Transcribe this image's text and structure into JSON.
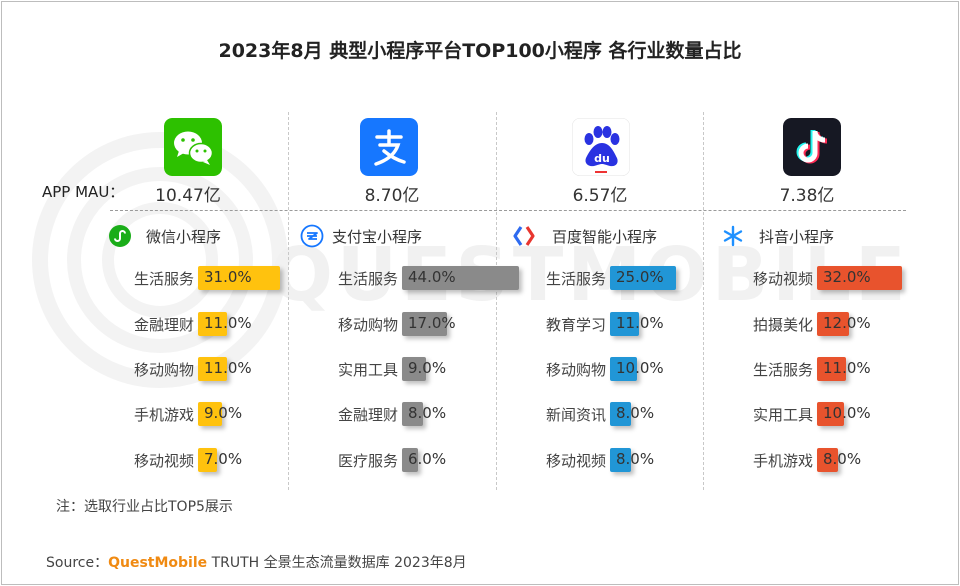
{
  "title": "2023年8月 典型小程序平台TOP100小程序 各行业数量占比",
  "mau_label": "APP MAU：",
  "watermark": "QUESTMOBILE",
  "colors": {
    "wechat": "#ffc20e",
    "alipay": "#8a8a8a",
    "baidu": "#2196d6",
    "douyin": "#e8532d"
  },
  "chart_data": [
    {
      "type": "bar",
      "app": "微信小程序",
      "mau": "10.47亿",
      "icon": "wechat-icon",
      "categories": [
        "生活服务",
        "金融理财",
        "移动购物",
        "手机游戏",
        "移动视频"
      ],
      "values": [
        31.0,
        11.0,
        11.0,
        9.0,
        7.0
      ],
      "value_labels": [
        "31.0%",
        "11.0%",
        "11.0%",
        "9.0%",
        "7.0%"
      ]
    },
    {
      "type": "bar",
      "app": "支付宝小程序",
      "mau": "8.70亿",
      "icon": "alipay-icon",
      "categories": [
        "生活服务",
        "移动购物",
        "实用工具",
        "金融理财",
        "医疗服务"
      ],
      "values": [
        44.0,
        17.0,
        9.0,
        8.0,
        6.0
      ],
      "value_labels": [
        "44.0%",
        "17.0%",
        "9.0%",
        "8.0%",
        "6.0%"
      ]
    },
    {
      "type": "bar",
      "app": "百度智能小程序",
      "mau": "6.57亿",
      "icon": "baidu-icon",
      "categories": [
        "生活服务",
        "教育学习",
        "移动购物",
        "新闻资讯",
        "移动视频"
      ],
      "values": [
        25.0,
        11.0,
        10.0,
        8.0,
        8.0
      ],
      "value_labels": [
        "25.0%",
        "11.0%",
        "10.0%",
        "8.0%",
        "8.0%"
      ]
    },
    {
      "type": "bar",
      "app": "抖音小程序",
      "mau": "7.38亿",
      "icon": "douyin-icon",
      "categories": [
        "移动视频",
        "拍摄美化",
        "生活服务",
        "实用工具",
        "手机游戏"
      ],
      "values": [
        32.0,
        12.0,
        11.0,
        10.0,
        8.0
      ],
      "value_labels": [
        "32.0%",
        "12.0%",
        "11.0%",
        "10.0%",
        "8.0%"
      ]
    }
  ],
  "note": "注：选取行业占比TOP5展示",
  "source": {
    "prefix": "Source：",
    "brand": "QuestMobile",
    "rest": " TRUTH 全景生态流量数据库 2023年8月"
  }
}
